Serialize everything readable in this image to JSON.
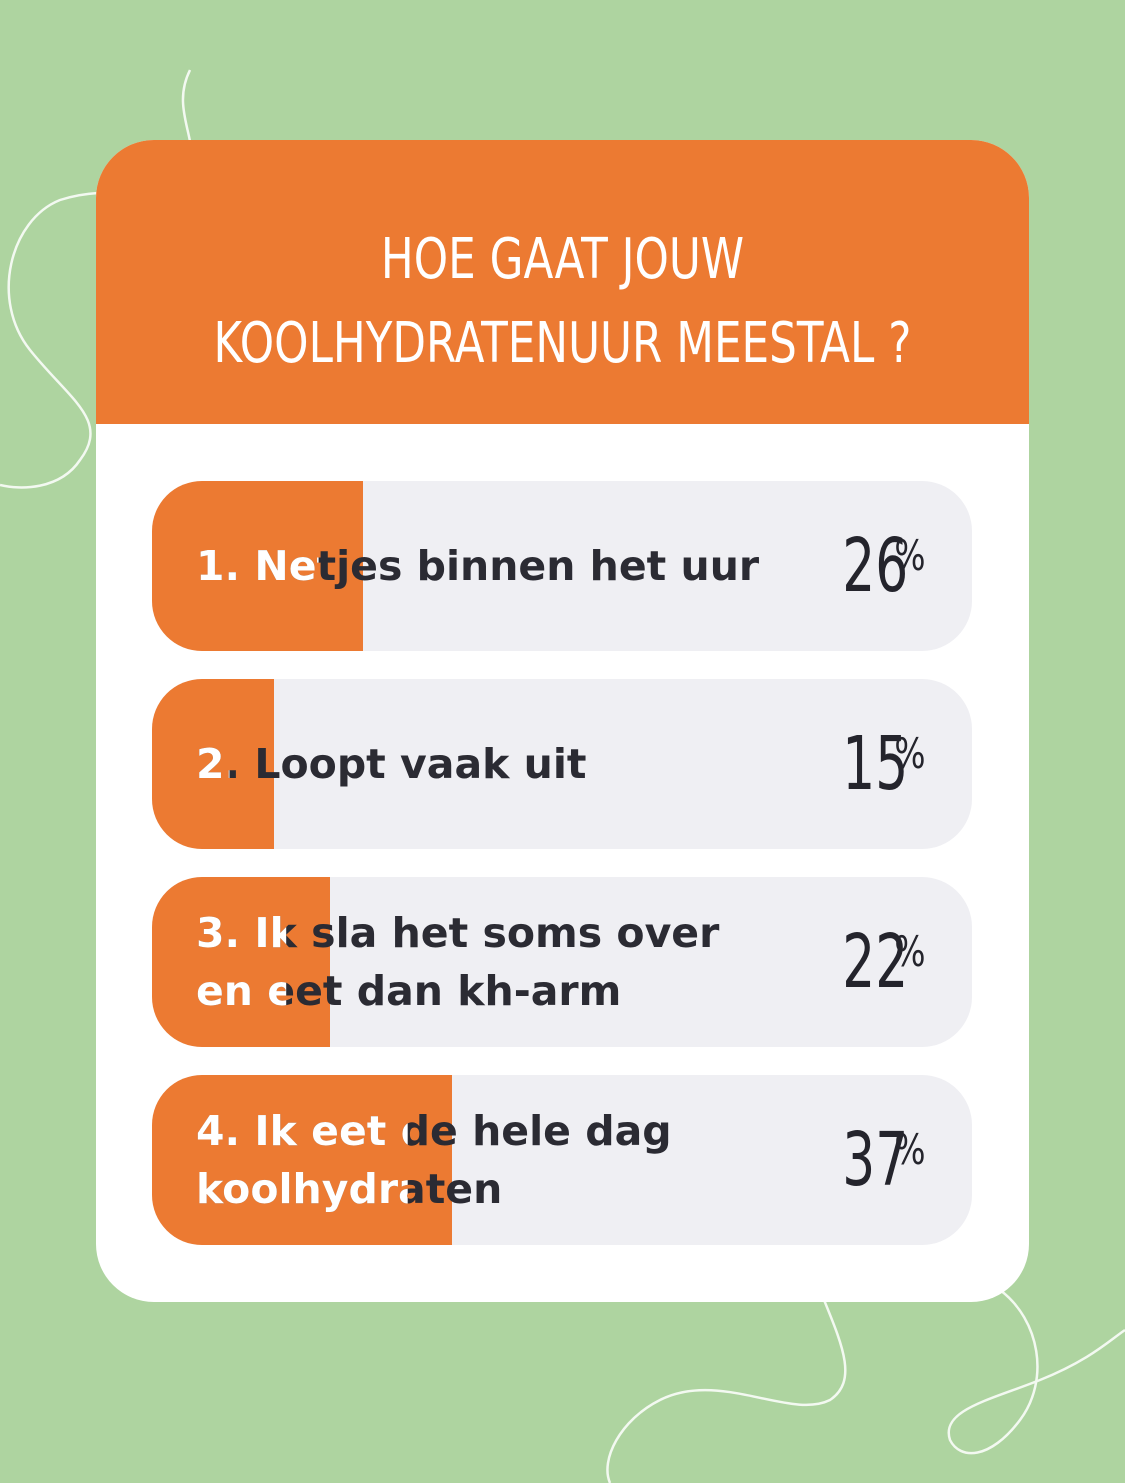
{
  "poll": {
    "question": "HOE GAAT JOUW\nKOOLHYDRATENUUR MEESTAL ?",
    "options": [
      {
        "label": "1. Netjes binnen het uur",
        "percent": "26",
        "percent_value": 26
      },
      {
        "label": "2. Loopt vaak uit",
        "percent": "15",
        "percent_value": 15
      },
      {
        "label": "3. Ik sla het soms over\nen eet dan kh-arm",
        "percent": "22",
        "percent_value": 22
      },
      {
        "label": "4. Ik eet de hele dag\nkoolhydraten",
        "percent": "37",
        "percent_value": 37
      }
    ],
    "percent_sign": "%"
  },
  "colors": {
    "background": "#aed4a0",
    "accent": "#ec7a32",
    "card": "#ffffff",
    "option_track": "#efeff3",
    "text_dark": "#2b2b33"
  }
}
